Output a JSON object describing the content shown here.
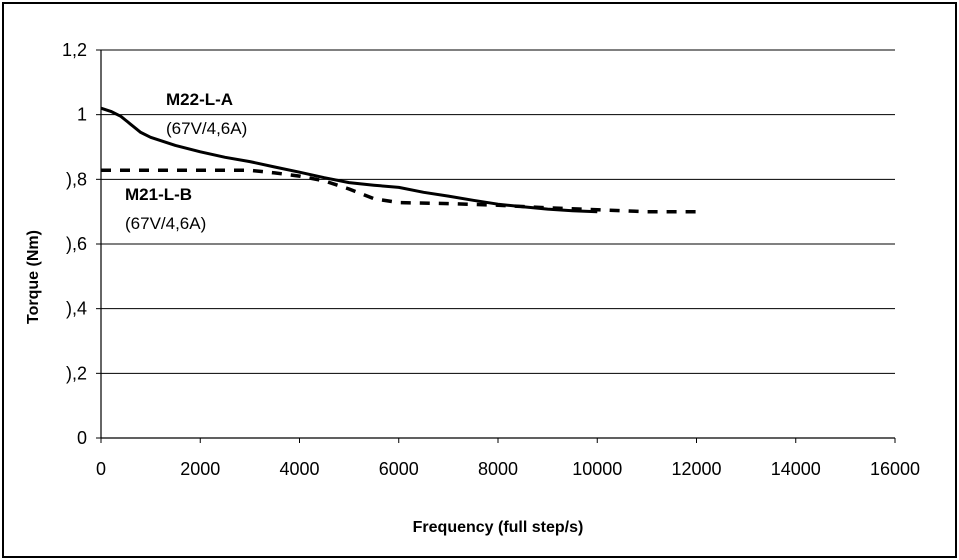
{
  "chart_data": {
    "type": "line",
    "xlabel": "Frequency (full step/s)",
    "ylabel": "Torque (Nm)",
    "xlim": [
      0,
      16000
    ],
    "ylim": [
      0,
      1.2
    ],
    "xticks": [
      0,
      2000,
      4000,
      6000,
      8000,
      10000,
      12000,
      14000,
      16000
    ],
    "xtick_labels": [
      "0",
      "2000",
      "4000",
      "6000",
      "8000",
      "10000",
      "12000",
      "14000",
      "16000"
    ],
    "yticks": [
      0,
      0.2,
      0.4,
      0.6,
      0.8,
      1,
      1.2
    ],
    "ytick_labels": [
      "0",
      "),2",
      "),4",
      "),6",
      "),8",
      "1",
      "1,2"
    ],
    "grid": "horizontal",
    "legend": "none",
    "series": [
      {
        "name": "M22-L-A",
        "style": "solid",
        "color": "#000000",
        "x": [
          0,
          200,
          400,
          600,
          800,
          1000,
          1500,
          2000,
          2500,
          3000,
          3500,
          4000,
          4500,
          5000,
          5500,
          6000,
          6500,
          7000,
          7500,
          8000,
          8500,
          9000,
          9500,
          10000
        ],
        "y": [
          1.02,
          1.01,
          0.995,
          0.97,
          0.945,
          0.93,
          0.905,
          0.885,
          0.868,
          0.855,
          0.838,
          0.822,
          0.805,
          0.79,
          0.782,
          0.775,
          0.76,
          0.748,
          0.735,
          0.723,
          0.715,
          0.708,
          0.703,
          0.7
        ]
      },
      {
        "name": "M21-L-B",
        "style": "dashed",
        "color": "#000000",
        "x": [
          0,
          3000,
          3500,
          4000,
          4500,
          5000,
          5500,
          6000,
          7000,
          8000,
          9000,
          10000,
          11000,
          12000
        ],
        "y": [
          0.828,
          0.828,
          0.82,
          0.81,
          0.795,
          0.77,
          0.74,
          0.728,
          0.725,
          0.72,
          0.712,
          0.706,
          0.7,
          0.7
        ]
      }
    ],
    "annotations": [
      {
        "series": "M22-L-A",
        "name": "M22-L-A",
        "detail": "(67V/4,6A)"
      },
      {
        "series": "M21-L-B",
        "name": "M21-L-B",
        "detail": "(67V/4,6A)"
      }
    ]
  }
}
